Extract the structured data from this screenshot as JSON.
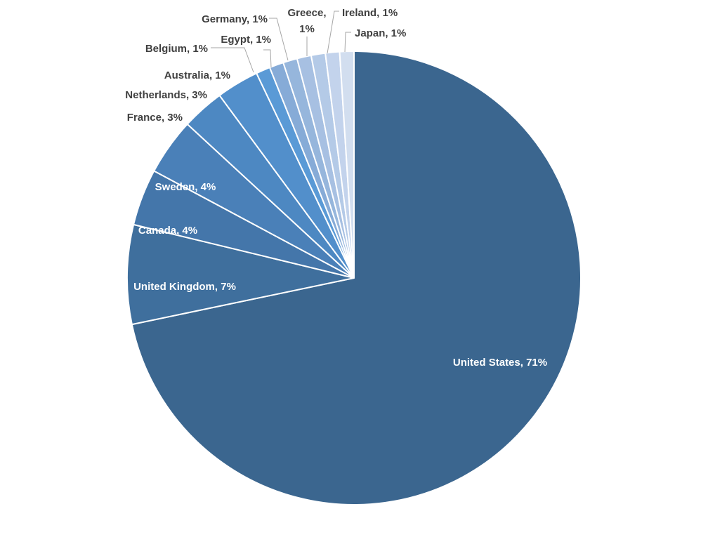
{
  "chart_data": {
    "type": "pie",
    "title": "",
    "slices": [
      {
        "label": "United States",
        "value": 71,
        "text": "United States, 71%",
        "color": "#3b668f"
      },
      {
        "label": "United Kingdom",
        "value": 7,
        "text": "United Kingdom, 7%",
        "color": "#3f6f9d"
      },
      {
        "label": "Canada",
        "value": 4,
        "text": "Canada, 4%",
        "color": "#4476aa"
      },
      {
        "label": "Sweden",
        "value": 4,
        "text": "Sweden, 4%",
        "color": "#4a80b8"
      },
      {
        "label": "France",
        "value": 3,
        "text": "France, 3%",
        "color": "#4d88c2"
      },
      {
        "label": "Netherlands",
        "value": 3,
        "text": "Netherlands, 3%",
        "color": "#528fcb"
      },
      {
        "label": "Australia",
        "value": 1,
        "text": "Australia, 1%",
        "color": "#5a9ad6"
      },
      {
        "label": "Belgium",
        "value": 1,
        "text": "Belgium, 1%",
        "color": "#86abd7"
      },
      {
        "label": "Egypt",
        "value": 1,
        "text": "Egypt, 1%",
        "color": "#96b6dc"
      },
      {
        "label": "Germany",
        "value": 1,
        "text": "Germany, 1%",
        "color": "#a7c0e2"
      },
      {
        "label": "Greece",
        "value": 1,
        "text": "Greece, 1%",
        "color": "#b4cae7"
      },
      {
        "label": "Ireland",
        "value": 1,
        "text": "Ireland, 1%",
        "color": "#c3d3ec"
      },
      {
        "label": "Japan",
        "value": 1,
        "text": "Japan, 1%",
        "color": "#d2deef"
      }
    ],
    "start_angle_deg": 0,
    "direction": "clockwise",
    "legend": "none",
    "label_position": "inside for large slices, outside with leader lines for small slices"
  }
}
